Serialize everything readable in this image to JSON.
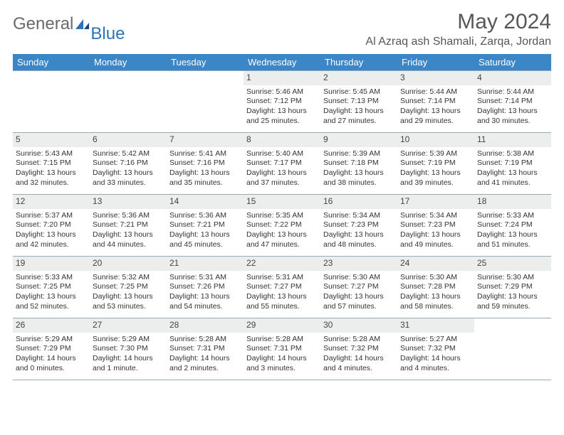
{
  "logo": {
    "general": "General",
    "blue": "Blue"
  },
  "title": "May 2024",
  "location": "Al Azraq ash Shamali, Zarqa, Jordan",
  "colors": {
    "header_bg": "#3b86c7",
    "header_fg": "#ffffff",
    "daynum_bg": "#eceded",
    "rule": "#98a9b8",
    "title_fg": "#575757",
    "logo_gray": "#6a6a6a",
    "logo_blue": "#2d73b8"
  },
  "dow": [
    "Sunday",
    "Monday",
    "Tuesday",
    "Wednesday",
    "Thursday",
    "Friday",
    "Saturday"
  ],
  "weeks": [
    [
      {
        "n": "",
        "empty": true
      },
      {
        "n": "",
        "empty": true
      },
      {
        "n": "",
        "empty": true
      },
      {
        "n": "1",
        "sr": "5:46 AM",
        "ss": "7:12 PM",
        "dl": "13 hours and 25 minutes."
      },
      {
        "n": "2",
        "sr": "5:45 AM",
        "ss": "7:13 PM",
        "dl": "13 hours and 27 minutes."
      },
      {
        "n": "3",
        "sr": "5:44 AM",
        "ss": "7:14 PM",
        "dl": "13 hours and 29 minutes."
      },
      {
        "n": "4",
        "sr": "5:44 AM",
        "ss": "7:14 PM",
        "dl": "13 hours and 30 minutes."
      }
    ],
    [
      {
        "n": "5",
        "sr": "5:43 AM",
        "ss": "7:15 PM",
        "dl": "13 hours and 32 minutes."
      },
      {
        "n": "6",
        "sr": "5:42 AM",
        "ss": "7:16 PM",
        "dl": "13 hours and 33 minutes."
      },
      {
        "n": "7",
        "sr": "5:41 AM",
        "ss": "7:16 PM",
        "dl": "13 hours and 35 minutes."
      },
      {
        "n": "8",
        "sr": "5:40 AM",
        "ss": "7:17 PM",
        "dl": "13 hours and 37 minutes."
      },
      {
        "n": "9",
        "sr": "5:39 AM",
        "ss": "7:18 PM",
        "dl": "13 hours and 38 minutes."
      },
      {
        "n": "10",
        "sr": "5:39 AM",
        "ss": "7:19 PM",
        "dl": "13 hours and 39 minutes."
      },
      {
        "n": "11",
        "sr": "5:38 AM",
        "ss": "7:19 PM",
        "dl": "13 hours and 41 minutes."
      }
    ],
    [
      {
        "n": "12",
        "sr": "5:37 AM",
        "ss": "7:20 PM",
        "dl": "13 hours and 42 minutes."
      },
      {
        "n": "13",
        "sr": "5:36 AM",
        "ss": "7:21 PM",
        "dl": "13 hours and 44 minutes."
      },
      {
        "n": "14",
        "sr": "5:36 AM",
        "ss": "7:21 PM",
        "dl": "13 hours and 45 minutes."
      },
      {
        "n": "15",
        "sr": "5:35 AM",
        "ss": "7:22 PM",
        "dl": "13 hours and 47 minutes."
      },
      {
        "n": "16",
        "sr": "5:34 AM",
        "ss": "7:23 PM",
        "dl": "13 hours and 48 minutes."
      },
      {
        "n": "17",
        "sr": "5:34 AM",
        "ss": "7:23 PM",
        "dl": "13 hours and 49 minutes."
      },
      {
        "n": "18",
        "sr": "5:33 AM",
        "ss": "7:24 PM",
        "dl": "13 hours and 51 minutes."
      }
    ],
    [
      {
        "n": "19",
        "sr": "5:33 AM",
        "ss": "7:25 PM",
        "dl": "13 hours and 52 minutes."
      },
      {
        "n": "20",
        "sr": "5:32 AM",
        "ss": "7:25 PM",
        "dl": "13 hours and 53 minutes."
      },
      {
        "n": "21",
        "sr": "5:31 AM",
        "ss": "7:26 PM",
        "dl": "13 hours and 54 minutes."
      },
      {
        "n": "22",
        "sr": "5:31 AM",
        "ss": "7:27 PM",
        "dl": "13 hours and 55 minutes."
      },
      {
        "n": "23",
        "sr": "5:30 AM",
        "ss": "7:27 PM",
        "dl": "13 hours and 57 minutes."
      },
      {
        "n": "24",
        "sr": "5:30 AM",
        "ss": "7:28 PM",
        "dl": "13 hours and 58 minutes."
      },
      {
        "n": "25",
        "sr": "5:30 AM",
        "ss": "7:29 PM",
        "dl": "13 hours and 59 minutes."
      }
    ],
    [
      {
        "n": "26",
        "sr": "5:29 AM",
        "ss": "7:29 PM",
        "dl": "14 hours and 0 minutes."
      },
      {
        "n": "27",
        "sr": "5:29 AM",
        "ss": "7:30 PM",
        "dl": "14 hours and 1 minute."
      },
      {
        "n": "28",
        "sr": "5:28 AM",
        "ss": "7:31 PM",
        "dl": "14 hours and 2 minutes."
      },
      {
        "n": "29",
        "sr": "5:28 AM",
        "ss": "7:31 PM",
        "dl": "14 hours and 3 minutes."
      },
      {
        "n": "30",
        "sr": "5:28 AM",
        "ss": "7:32 PM",
        "dl": "14 hours and 4 minutes."
      },
      {
        "n": "31",
        "sr": "5:27 AM",
        "ss": "7:32 PM",
        "dl": "14 hours and 4 minutes."
      },
      {
        "n": "",
        "empty": true
      }
    ]
  ],
  "labels": {
    "sunrise": "Sunrise: ",
    "sunset": "Sunset: ",
    "daylight": "Daylight: "
  }
}
